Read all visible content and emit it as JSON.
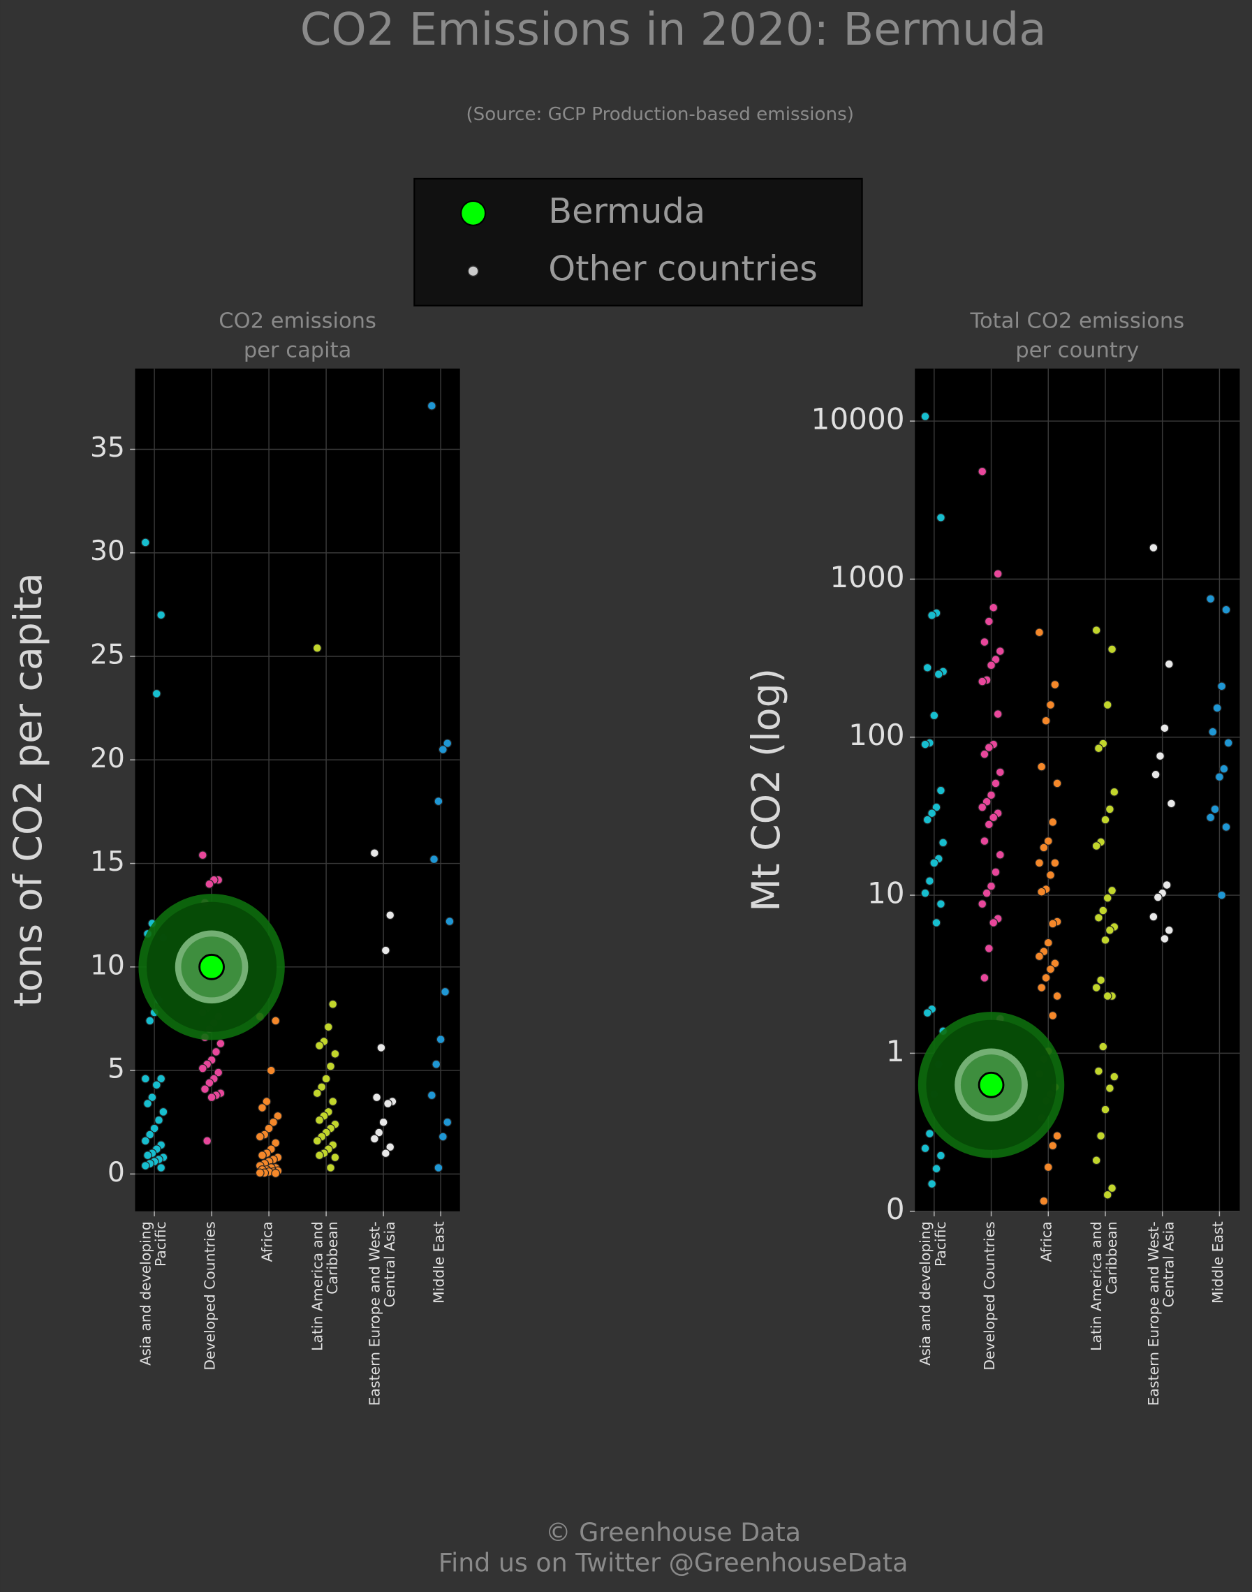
{
  "title": "CO2 Emissions in 2020: Bermuda",
  "subtitle": "(Source: GCP Production-based emissions)",
  "legend": [
    {
      "name": "Bermuda",
      "color": "#00ff00"
    },
    {
      "name": "Other countries",
      "color": "#cccccc"
    }
  ],
  "footer": [
    "© Greenhouse Data",
    "Find us on Twitter @GreenhouseData"
  ],
  "chart_data": [
    {
      "type": "strip",
      "title": [
        "CO2 emissions",
        "per capita"
      ],
      "y_label": "tons of CO2 per capita",
      "categories": [
        "Asia and developing Pacific",
        "Developed Countries",
        "Africa",
        "Latin America and Caribbean",
        "Eastern Europe and West-Central Asia",
        "Middle East"
      ],
      "colors": [
        "#17becf",
        "#e8479b",
        "#f5882a",
        "#c2d62c",
        "#e8e8e8",
        "#1f97d4"
      ],
      "values": [
        [
          30.5,
          27,
          23.2,
          12.1,
          11.6,
          11.4,
          8.4,
          7.8,
          7.4,
          4.6,
          4.6,
          4.3,
          3.7,
          3.4,
          3.0,
          2.6,
          2.2,
          1.9,
          1.6,
          1.4,
          1.2,
          1.0,
          0.9,
          0.8,
          0.7,
          0.6,
          0.5,
          0.4,
          0.3
        ],
        [
          15.4,
          14.2,
          14.2,
          14.0,
          13.1,
          9.0,
          8.6,
          8.3,
          8.0,
          7.8,
          7.6,
          7.3,
          7.0,
          6.6,
          6.3,
          5.9,
          5.5,
          5.3,
          5.1,
          4.9,
          4.6,
          4.4,
          4.1,
          3.9,
          3.8,
          3.7,
          1.6
        ],
        [
          7.6,
          7.4,
          5.0,
          3.5,
          3.2,
          2.8,
          2.5,
          2.2,
          1.9,
          1.8,
          1.5,
          1.2,
          1.0,
          0.9,
          0.8,
          0.7,
          0.6,
          0.5,
          0.4,
          0.3,
          0.3,
          0.2,
          0.2,
          0.15,
          0.1,
          0.1,
          0.05,
          0.05,
          0.03
        ],
        [
          25.4,
          8.2,
          7.1,
          6.4,
          6.2,
          5.8,
          5.2,
          4.6,
          4.2,
          3.9,
          3.5,
          3.0,
          2.8,
          2.6,
          2.4,
          2.2,
          2.0,
          1.8,
          1.6,
          1.4,
          1.2,
          1.0,
          0.9,
          0.8,
          0.3
        ],
        [
          15.5,
          12.5,
          10.8,
          6.1,
          3.7,
          3.5,
          3.4,
          2.5,
          2.0,
          1.7,
          1.3,
          1.0
        ],
        [
          37.1,
          20.8,
          20.5,
          18.0,
          15.2,
          12.2,
          8.8,
          6.5,
          5.3,
          3.8,
          2.5,
          1.8,
          0.3
        ]
      ],
      "highlight": {
        "category": "Developed Countries",
        "value": 10
      },
      "ylim": [
        -1.8,
        38.9
      ],
      "yticks": [
        0,
        5,
        10,
        15,
        20,
        25,
        30,
        35
      ],
      "log": false,
      "grid": true
    },
    {
      "type": "strip",
      "title": [
        "Total CO2 emissions",
        "per country"
      ],
      "y_label": "Mt CO2 (log)",
      "categories": [
        "Asia and developing Pacific",
        "Developed Countries",
        "Africa",
        "Latin America and Caribbean",
        "Eastern Europe and West-Central Asia",
        "Middle East"
      ],
      "colors": [
        "#17becf",
        "#e8479b",
        "#f5882a",
        "#c2d62c",
        "#e8e8e8",
        "#1f97d4"
      ],
      "values": [
        [
          10700,
          2450,
          610,
          590,
          275,
          260,
          250,
          137,
          92,
          90,
          46,
          36,
          33,
          30,
          21.5,
          17,
          16,
          12.3,
          10.3,
          8.8,
          6.7,
          1.9,
          1.8,
          1.38,
          0.85,
          0.55,
          0.31,
          0.25,
          0.225,
          0.186,
          0.149
        ],
        [
          4800,
          1080,
          660,
          540,
          400,
          350,
          310,
          285,
          230,
          225,
          140,
          90,
          86,
          78,
          60,
          51,
          43,
          39,
          36,
          33,
          31,
          28,
          22,
          18,
          14,
          11.4,
          10.3,
          8.8,
          7.1,
          6.7,
          4.6,
          3.0,
          1.65,
          0.56
        ],
        [
          460,
          215,
          160,
          127,
          65,
          51,
          29,
          22,
          20,
          16,
          16,
          13.4,
          10.9,
          10.5,
          6.8,
          6.6,
          5.0,
          4.4,
          4.1,
          3.7,
          3.4,
          3.0,
          2.6,
          2.3,
          1.73,
          1.03,
          0.92,
          0.74,
          0.61,
          0.55,
          0.5,
          0.39,
          0.3,
          0.26,
          0.19,
          0.116
        ],
        [
          475,
          360,
          160,
          91,
          85,
          45,
          35,
          30,
          21.7,
          20.5,
          10.7,
          9.6,
          8.0,
          7.2,
          6.3,
          6.0,
          5.2,
          2.9,
          2.6,
          2.3,
          2.3,
          1.1,
          0.77,
          0.71,
          0.6,
          0.44,
          0.3,
          0.21,
          0.14,
          0.127
        ],
        [
          1580,
          290,
          114,
          76,
          58,
          38,
          11.6,
          10.3,
          9.7,
          7.3,
          6.0,
          5.3
        ],
        [
          750,
          640,
          210,
          153,
          108,
          92,
          63,
          56,
          35,
          31,
          27,
          10.0
        ]
      ],
      "highlight": {
        "category": "Developed Countries",
        "value": 0.63
      },
      "ylim": [
        0.1,
        21500
      ],
      "yticks": [
        {
          "value": 0.1,
          "label": "0"
        },
        1,
        10,
        100,
        1000,
        10000
      ],
      "log": true,
      "grid": true
    }
  ]
}
